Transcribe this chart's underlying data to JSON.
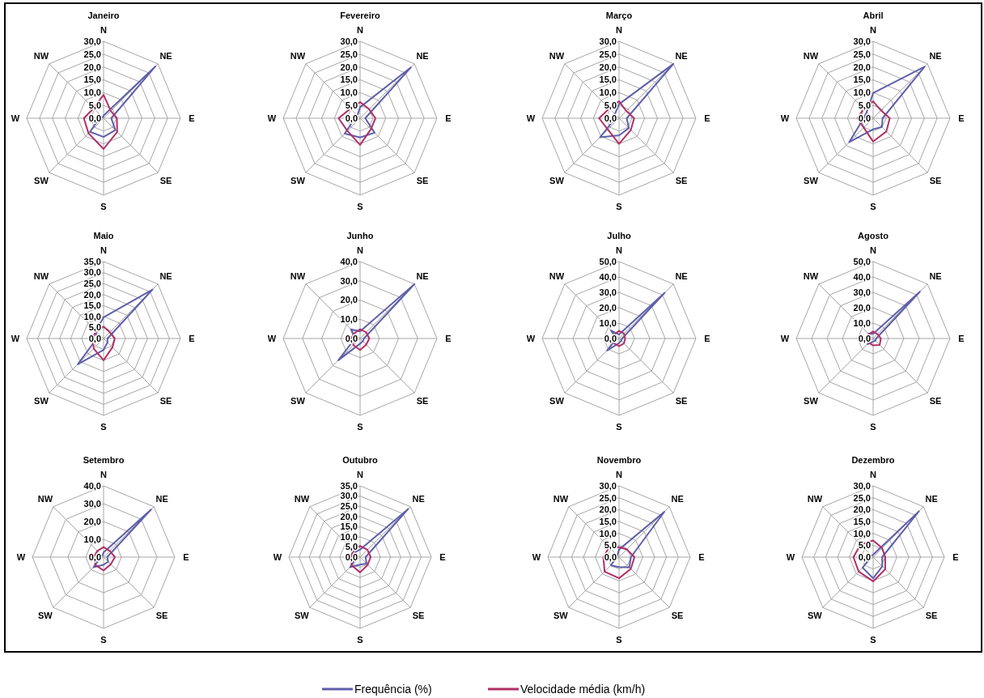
{
  "chart_data": [
    {
      "type": "radar",
      "title": "Janeiro",
      "categories": [
        "N",
        "NE",
        "E",
        "SE",
        "S",
        "SW",
        "W",
        "NW"
      ],
      "ylim": [
        0,
        30
      ],
      "yticks": [
        {
          "value": 0,
          "label": "0,0"
        },
        {
          "value": 5,
          "label": "5,0"
        },
        {
          "value": 10,
          "label": "10,0"
        },
        {
          "value": 15,
          "label": "15,0"
        },
        {
          "value": 20,
          "label": "20,0"
        },
        {
          "value": 25,
          "label": "25,0"
        },
        {
          "value": 30,
          "label": "30,0"
        }
      ],
      "series": [
        {
          "color": "#5f5fab",
          "values": [
            1,
            28.6,
            3,
            6.5,
            7.3,
            7.5,
            1.6,
            0.5
          ]
        },
        {
          "color": "#b03066",
          "values": [
            9.1,
            4,
            5.2,
            7.5,
            12,
            8.3,
            7.7,
            5.5
          ]
        }
      ]
    },
    {
      "type": "radar",
      "title": "Fevereiro",
      "categories": [
        "N",
        "NE",
        "E",
        "SE",
        "S",
        "SW",
        "W",
        "NW"
      ],
      "ylim": [
        0,
        30
      ],
      "yticks": [
        {
          "value": 0,
          "label": "0,0"
        },
        {
          "value": 5,
          "label": "5,0"
        },
        {
          "value": 10,
          "label": "10,0"
        },
        {
          "value": 15,
          "label": "15,0"
        },
        {
          "value": 20,
          "label": "20,0"
        },
        {
          "value": 25,
          "label": "25,0"
        },
        {
          "value": 30,
          "label": "30,0"
        }
      ],
      "series": [
        {
          "color": "#5f5fab",
          "values": [
            4.3,
            28,
            2,
            8,
            7.5,
            8.5,
            2,
            1.5
          ]
        },
        {
          "color": "#b03066",
          "values": [
            6.3,
            5,
            6,
            6,
            10.4,
            7,
            8.4,
            5.3
          ]
        }
      ]
    },
    {
      "type": "radar",
      "title": "Março",
      "categories": [
        "N",
        "NE",
        "E",
        "SE",
        "S",
        "SW",
        "W",
        "NW"
      ],
      "ylim": [
        0,
        30
      ],
      "yticks": [
        {
          "value": 0,
          "label": "0,0"
        },
        {
          "value": 5,
          "label": "5,0"
        },
        {
          "value": 10,
          "label": "10,0"
        },
        {
          "value": 15,
          "label": "15,0"
        },
        {
          "value": 20,
          "label": "20,0"
        },
        {
          "value": 25,
          "label": "25,0"
        },
        {
          "value": 30,
          "label": "30,0"
        }
      ],
      "series": [
        {
          "color": "#5f5fab",
          "values": [
            5.5,
            30,
            3,
            5.4,
            6.7,
            10.5,
            1.5,
            2.3
          ]
        },
        {
          "color": "#b03066",
          "values": [
            6.6,
            4,
            5.9,
            6.5,
            10,
            6.2,
            7.8,
            5.4
          ]
        }
      ]
    },
    {
      "type": "radar",
      "title": "Abril",
      "categories": [
        "N",
        "NE",
        "E",
        "SE",
        "S",
        "SW",
        "W",
        "NW"
      ],
      "ylim": [
        0,
        30
      ],
      "yticks": [
        {
          "value": 0,
          "label": "0,0"
        },
        {
          "value": 5,
          "label": "5,0"
        },
        {
          "value": 10,
          "label": "10,0"
        },
        {
          "value": 15,
          "label": "15,0"
        },
        {
          "value": 20,
          "label": "20,0"
        },
        {
          "value": 25,
          "label": "25,0"
        },
        {
          "value": 30,
          "label": "30,0"
        }
      ],
      "series": [
        {
          "color": "#5f5fab",
          "values": [
            9.8,
            28.4,
            3.7,
            4.8,
            4.3,
            13.2,
            3.7,
            3.5
          ]
        },
        {
          "color": "#b03066",
          "values": [
            6.6,
            4.3,
            6.5,
            7.3,
            9.1,
            5.2,
            6.1,
            5.2
          ]
        }
      ]
    },
    {
      "type": "radar",
      "title": "Maio",
      "categories": [
        "N",
        "NE",
        "E",
        "SE",
        "S",
        "SW",
        "W",
        "NW"
      ],
      "ylim": [
        0,
        35
      ],
      "yticks": [
        {
          "value": 0,
          "label": "0,0"
        },
        {
          "value": 5,
          "label": "5,0"
        },
        {
          "value": 10,
          "label": "10,0"
        },
        {
          "value": 15,
          "label": "15,0"
        },
        {
          "value": 20,
          "label": "20,0"
        },
        {
          "value": 25,
          "label": "25,0"
        },
        {
          "value": 30,
          "label": "30,0"
        },
        {
          "value": 35,
          "label": "35,0"
        }
      ],
      "series": [
        {
          "color": "#5f5fab",
          "values": [
            9.6,
            31.5,
            1.8,
            2.5,
            5.2,
            16.6,
            3.1,
            5
          ]
        },
        {
          "color": "#b03066",
          "values": [
            5.4,
            4,
            5.1,
            5.7,
            9.9,
            6.4,
            4.9,
            4.9
          ]
        }
      ]
    },
    {
      "type": "radar",
      "title": "Junho",
      "categories": [
        "N",
        "NE",
        "E",
        "SE",
        "S",
        "SW",
        "W",
        "NW"
      ],
      "ylim": [
        0,
        40
      ],
      "yticks": [
        {
          "value": 0,
          "label": "0,0"
        },
        {
          "value": 10,
          "label": "10,0"
        },
        {
          "value": 20,
          "label": "20,0"
        },
        {
          "value": 30,
          "label": "30,0"
        },
        {
          "value": 40,
          "label": "40,0"
        }
      ],
      "series": [
        {
          "color": "#5f5fab",
          "values": [
            3.7,
            40,
            2,
            2,
            2.7,
            16,
            2.7,
            6.7
          ]
        },
        {
          "color": "#b03066",
          "values": [
            4.8,
            4.5,
            4.8,
            4.5,
            6,
            4.9,
            4.7,
            4
          ]
        }
      ]
    },
    {
      "type": "radar",
      "title": "Julho",
      "categories": [
        "N",
        "NE",
        "E",
        "SE",
        "S",
        "SW",
        "W",
        "NW"
      ],
      "ylim": [
        0,
        50
      ],
      "yticks": [
        {
          "value": 0,
          "label": "0,0"
        },
        {
          "value": 10,
          "label": "10,0"
        },
        {
          "value": 20,
          "label": "20,0"
        },
        {
          "value": 30,
          "label": "30,0"
        },
        {
          "value": 40,
          "label": "40,0"
        },
        {
          "value": 50,
          "label": "50,0"
        }
      ],
      "series": [
        {
          "color": "#5f5fab",
          "values": [
            2.6,
            42,
            2,
            2,
            3,
            11,
            2,
            7.4
          ]
        },
        {
          "color": "#b03066",
          "values": [
            5,
            4.5,
            4,
            4.5,
            5,
            4.5,
            4,
            4
          ]
        }
      ]
    },
    {
      "type": "radar",
      "title": "Agosto",
      "categories": [
        "N",
        "NE",
        "E",
        "SE",
        "S",
        "SW",
        "W",
        "NW"
      ],
      "ylim": [
        0,
        50
      ],
      "yticks": [
        {
          "value": 0,
          "label": "0,0"
        },
        {
          "value": 10,
          "label": "10,0"
        },
        {
          "value": 20,
          "label": "20,0"
        },
        {
          "value": 30,
          "label": "30,0"
        },
        {
          "value": 40,
          "label": "40,0"
        },
        {
          "value": 50,
          "label": "50,0"
        }
      ],
      "series": [
        {
          "color": "#5f5fab",
          "values": [
            3,
            43,
            2,
            2,
            2,
            5.2,
            2,
            4.4
          ]
        },
        {
          "color": "#b03066",
          "values": [
            4.5,
            4,
            5,
            6,
            4.5,
            4,
            4.5,
            4
          ]
        }
      ]
    },
    {
      "type": "radar",
      "title": "Setembro",
      "categories": [
        "N",
        "NE",
        "E",
        "SE",
        "S",
        "SW",
        "W",
        "NW"
      ],
      "ylim": [
        0,
        40
      ],
      "yticks": [
        {
          "value": 0,
          "label": "0,0"
        },
        {
          "value": 10,
          "label": "10,0"
        },
        {
          "value": 20,
          "label": "20,0"
        },
        {
          "value": 30,
          "label": "30,0"
        },
        {
          "value": 40,
          "label": "40,0"
        }
      ],
      "series": [
        {
          "color": "#5f5fab",
          "values": [
            2.6,
            37.7,
            2,
            3.7,
            4.3,
            8,
            2,
            1
          ]
        },
        {
          "color": "#b03066",
          "values": [
            5.6,
            4.9,
            6.4,
            5.7,
            7.5,
            6.4,
            5.6,
            4.9
          ]
        }
      ]
    },
    {
      "type": "radar",
      "title": "Outubro",
      "categories": [
        "N",
        "NE",
        "E",
        "SE",
        "S",
        "SW",
        "W",
        "NW"
      ],
      "ylim": [
        0,
        35
      ],
      "yticks": [
        {
          "value": 0,
          "label": "0,0"
        },
        {
          "value": 5,
          "label": "5,0"
        },
        {
          "value": 10,
          "label": "10,0"
        },
        {
          "value": 15,
          "label": "15,0"
        },
        {
          "value": 20,
          "label": "20,0"
        },
        {
          "value": 25,
          "label": "25,0"
        },
        {
          "value": 30,
          "label": "30,0"
        },
        {
          "value": 35,
          "label": "35,0"
        }
      ],
      "series": [
        {
          "color": "#5f5fab",
          "values": [
            3.7,
            33.5,
            2.7,
            4.5,
            3.7,
            7,
            1.8,
            3.4
          ]
        },
        {
          "color": "#b03066",
          "values": [
            5.5,
            5.1,
            5.2,
            5.3,
            7.5,
            5.8,
            4.5,
            4.5
          ]
        }
      ]
    },
    {
      "type": "radar",
      "title": "Novembro",
      "categories": [
        "N",
        "NE",
        "E",
        "SE",
        "S",
        "SW",
        "W",
        "NW"
      ],
      "ylim": [
        0,
        30
      ],
      "yticks": [
        {
          "value": 0,
          "label": "0,0"
        },
        {
          "value": 5,
          "label": "5,0"
        },
        {
          "value": 10,
          "label": "10,0"
        },
        {
          "value": 15,
          "label": "15,0"
        },
        {
          "value": 20,
          "label": "20,0"
        },
        {
          "value": 25,
          "label": "25,0"
        },
        {
          "value": 30,
          "label": "30,0"
        }
      ],
      "series": [
        {
          "color": "#5f5fab",
          "values": [
            3.2,
            27,
            5,
            6.1,
            4.2,
            4.9,
            1,
            1
          ]
        },
        {
          "color": "#b03066",
          "values": [
            4.2,
            4.6,
            6.5,
            7,
            8.9,
            8.6,
            6.6,
            5.9
          ]
        }
      ]
    },
    {
      "type": "radar",
      "title": "Dezembro",
      "categories": [
        "N",
        "NE",
        "E",
        "SE",
        "S",
        "SW",
        "W",
        "NW"
      ],
      "ylim": [
        0,
        30
      ],
      "yticks": [
        {
          "value": 0,
          "label": "0,0"
        },
        {
          "value": 5,
          "label": "5,0"
        },
        {
          "value": 10,
          "label": "10,0"
        },
        {
          "value": 15,
          "label": "15,0"
        },
        {
          "value": 20,
          "label": "20,0"
        },
        {
          "value": 25,
          "label": "25,0"
        },
        {
          "value": 30,
          "label": "30,0"
        }
      ],
      "legend": "bottom",
      "series": [
        {
          "name": "Frequência (%)",
          "color": "#5f5fab",
          "values": [
            1,
            27.3,
            3.8,
            5.5,
            8.9,
            6.3,
            1,
            1
          ]
        },
        {
          "name": "Velocidade média (km/h)",
          "color": "#b03066",
          "values": [
            7,
            5.4,
            5.1,
            7.2,
            10.2,
            8.6,
            8.3,
            7.5
          ]
        }
      ]
    }
  ]
}
